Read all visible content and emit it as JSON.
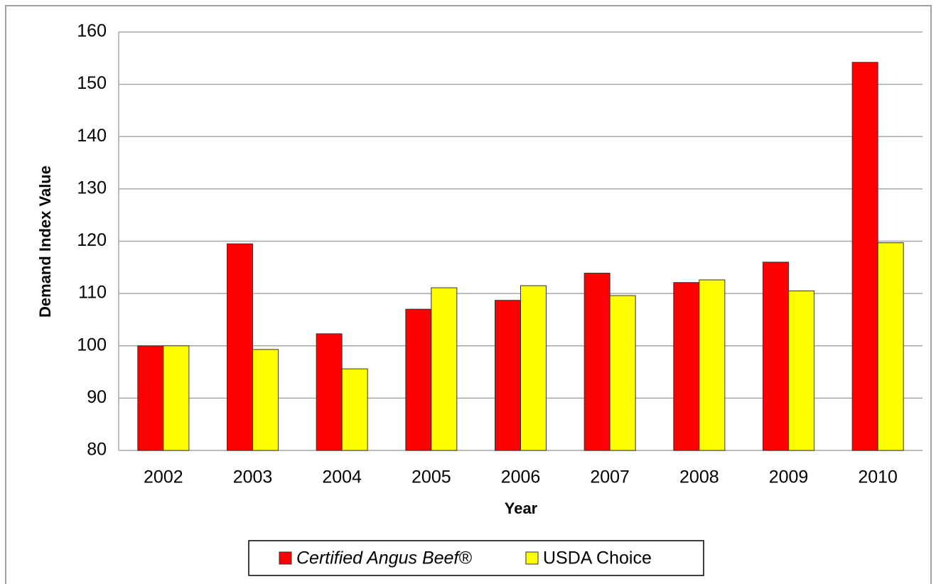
{
  "chart_data": {
    "type": "bar",
    "x_label": "Year",
    "y_label": "Demand Index Value",
    "categories": [
      "2002",
      "2003",
      "2004",
      "2005",
      "2006",
      "2007",
      "2008",
      "2009",
      "2010"
    ],
    "series": [
      {
        "name": "Certified Angus Beef®",
        "color": "#ff0000",
        "values": [
          100,
          119.5,
          102.3,
          107.0,
          108.7,
          113.9,
          112.1,
          116.0,
          154.2
        ]
      },
      {
        "name": "USDA Choice",
        "color": "#ffff00",
        "values": [
          100,
          99.3,
          95.6,
          111.1,
          111.5,
          109.6,
          112.6,
          110.5,
          119.7
        ]
      }
    ],
    "ylim": [
      80,
      160
    ],
    "yticks": [
      80,
      90,
      100,
      110,
      120,
      130,
      140,
      150,
      160
    ],
    "grid": true,
    "legend": "bottom"
  }
}
